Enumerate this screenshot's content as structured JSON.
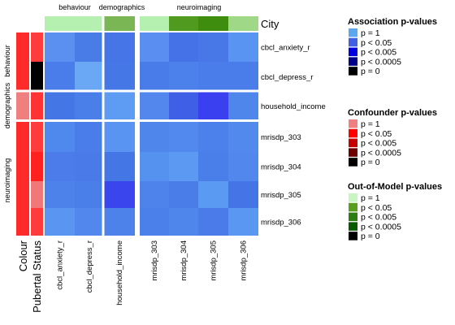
{
  "chart_data": {
    "type": "heatmap",
    "top_group_labels": [
      "behaviour",
      "demographics",
      "neuroimaging"
    ],
    "left_group_labels": [
      "behaviour",
      "demographics",
      "neuroimaging"
    ],
    "columns": [
      "cbcl_anxiety_r",
      "cbcl_depress_r",
      "household_income",
      "mrisdp_303",
      "mrisdp_304",
      "mrisdp_305",
      "mrisdp_306"
    ],
    "column_groups": [
      "behaviour",
      "behaviour",
      "demographics",
      "neuroimaging",
      "neuroimaging",
      "neuroimaging",
      "neuroimaging"
    ],
    "rows": [
      "cbcl_anxiety_r",
      "cbcl_depress_r",
      "household_income",
      "mrisdp_303",
      "mrisdp_304",
      "mrisdp_305",
      "mrisdp_306"
    ],
    "row_groups": [
      "behaviour",
      "behaviour",
      "demographics",
      "neuroimaging",
      "neuroimaging",
      "neuroimaging",
      "neuroimaging"
    ],
    "values": [
      [
        "#5b8ff0",
        "#4a7ce8",
        "#4575e6",
        "#5a8ef0",
        "#4572e6",
        "#4877e7",
        "#5a94f2"
      ],
      [
        "#4a7de9",
        "#6aa8f6",
        "#4577e7",
        "#4a7ce9",
        "#4c80ea",
        "#4a7de9",
        "#4a7de9"
      ],
      [
        "#4576e6",
        "#4a7ee9",
        "#5e9bf3",
        "#5487ee",
        "#3f60e6",
        "#3a3fef",
        "#4f86ec"
      ],
      [
        "#4f89ed",
        "#4a7de9",
        "#5a94f2",
        "#4f86ec",
        "#5289ee",
        "#4c80ea",
        "#5189ed"
      ],
      [
        "#4b7ce9",
        "#4a79e8",
        "#4576e6",
        "#5592f0",
        "#5c99f3",
        "#4a7ee9",
        "#5288ed"
      ],
      [
        "#4d82ea",
        "#4a7ee9",
        "#3a45ee",
        "#4d83eb",
        "#4b7de9",
        "#5a9af3",
        "#4574e6"
      ],
      [
        "#5a95f2",
        "#5288ed",
        "#4d82ea",
        "#4b7fe9",
        "#4f86ec",
        "#4a7be8",
        "#5a97f3"
      ]
    ],
    "side_annotations": {
      "labels": [
        "Colour",
        "Pubertal Status"
      ],
      "colour": [
        "#ff2a2a",
        "#ff2a2a",
        "#f08080",
        "#ff2a2a",
        "#ff2a2a",
        "#ff2a2a",
        "#ff2a2a"
      ],
      "pubertal_status": [
        "#ff3b3b",
        "#000000",
        "#ff3333",
        "#ff3b3b",
        "#ff2020",
        "#f07878",
        "#ff3b3b"
      ]
    },
    "top_annotation": {
      "label": "City",
      "colours": [
        "#b6f0b0",
        "#b6f0b0",
        "#7ab653",
        "#b6f0b0",
        "#4f9a1f",
        "#3f8d0f",
        "#9fd886"
      ]
    },
    "legends": [
      {
        "title": "Association p-values",
        "items": [
          {
            "label": "p = 1",
            "color": "#5ca8ef"
          },
          {
            "label": "p < 0.05",
            "color": "#3f5fe4"
          },
          {
            "label": "p < 0.005",
            "color": "#0000e0"
          },
          {
            "label": "p < 0.0005",
            "color": "#00008b"
          },
          {
            "label": "p = 0",
            "color": "#000000"
          }
        ]
      },
      {
        "title": "Confounder p-values",
        "items": [
          {
            "label": "p = 1",
            "color": "#f08080"
          },
          {
            "label": "p < 0.05",
            "color": "#ff0000"
          },
          {
            "label": "p < 0.005",
            "color": "#c80000"
          },
          {
            "label": "p < 0.0005",
            "color": "#6e0000"
          },
          {
            "label": "p = 0",
            "color": "#000000"
          }
        ]
      },
      {
        "title": "Out-of-Model p-values",
        "items": [
          {
            "label": "p = 1",
            "color": "#c8f5c0"
          },
          {
            "label": "p < 0.05",
            "color": "#5a9e1e"
          },
          {
            "label": "p < 0.005",
            "color": "#2e7d12"
          },
          {
            "label": "p < 0.0005",
            "color": "#0a5a00"
          },
          {
            "label": "p = 0",
            "color": "#000000"
          }
        ]
      }
    ]
  }
}
